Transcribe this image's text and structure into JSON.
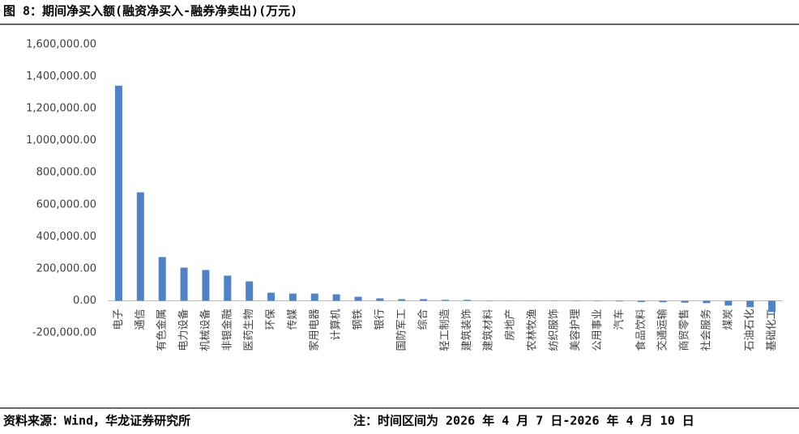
{
  "chart_data": {
    "type": "bar",
    "title": "图 8：期间净买入额(融资净买入-融券净卖出)(万元)",
    "source": "资料来源：Wind，华龙证券研究所",
    "note": "注：时间区间为 2026 年 4 月 7 日-2026 年 4 月 10 日",
    "categories": [
      "电子",
      "通信",
      "有色金属",
      "电力设备",
      "机械设备",
      "非银金融",
      "医药生物",
      "环保",
      "传媒",
      "家用电器",
      "计算机",
      "钢铁",
      "银行",
      "国防军工",
      "综合",
      "轻工制造",
      "建筑装饰",
      "建筑材料",
      "房地产",
      "农林牧渔",
      "纺织服饰",
      "美容护理",
      "公用事业",
      "汽车",
      "食品饮料",
      "交通运输",
      "商贸零售",
      "社会服务",
      "煤炭",
      "石油石化",
      "基础化工"
    ],
    "values": [
      1343000,
      677000,
      273000,
      207000,
      192000,
      157000,
      121000,
      50000,
      45000,
      45000,
      40000,
      25000,
      15000,
      10000,
      10000,
      6000,
      6000,
      2000,
      1000,
      -1000,
      -1500,
      -2000,
      -3000,
      -4000,
      -8000,
      -9000,
      -12000,
      -15000,
      -30000,
      -40000,
      -70000
    ],
    "color": "#5082c4",
    "ylim": [
      -200000,
      1600000
    ],
    "yticks": [
      {
        "value": -200000,
        "label": "-200,000.00"
      },
      {
        "value": 0,
        "label": "0.00"
      },
      {
        "value": 200000,
        "label": "200,000.00"
      },
      {
        "value": 400000,
        "label": "400,000.00"
      },
      {
        "value": 600000,
        "label": "600,000.00"
      },
      {
        "value": 800000,
        "label": "800,000.00"
      },
      {
        "value": 1000000,
        "label": "1,000,000.00"
      },
      {
        "value": 1200000,
        "label": "1,200,000.00"
      },
      {
        "value": 1400000,
        "label": "1,400,000.00"
      },
      {
        "value": 1600000,
        "label": "1,600,000.00"
      }
    ],
    "grid": false
  }
}
